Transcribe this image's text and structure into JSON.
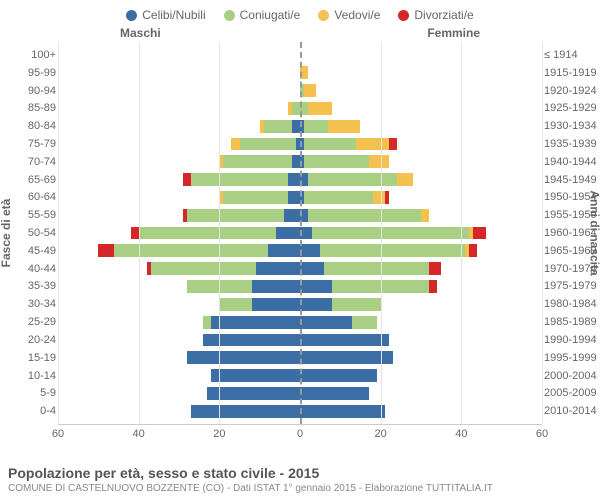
{
  "legend": {
    "items": [
      {
        "label": "Celibi/Nubili",
        "color": "#3b6ea5"
      },
      {
        "label": "Coniugati/e",
        "color": "#a9cf85"
      },
      {
        "label": "Vedovi/e",
        "color": "#f4c04f"
      },
      {
        "label": "Divorziati/e",
        "color": "#d62728"
      }
    ]
  },
  "column_headers": {
    "male": "Maschi",
    "female": "Femmine"
  },
  "axis_titles": {
    "left": "Fasce di età",
    "right": "Anni di nascita"
  },
  "xaxis": {
    "max": 60,
    "ticks": [
      60,
      40,
      20,
      0,
      20,
      40,
      60
    ]
  },
  "footer": {
    "title": "Popolazione per età, sesso e stato civile - 2015",
    "subtitle": "COMUNE DI CASTELNUOVO BOZZENTE (CO) - Dati ISTAT 1° gennaio 2015 - Elaborazione TUTTITALIA.IT"
  },
  "colors": {
    "celibi": "#3b6ea5",
    "coniugati": "#a9cf85",
    "vedovi": "#f4c04f",
    "divorziati": "#d62728",
    "grid": "#e5e5e5",
    "center": "#999999",
    "text": "#666666",
    "bg": "#ffffff"
  },
  "rows": [
    {
      "age": "100+",
      "birth": "≤ 1914",
      "m": {
        "ce": 0,
        "co": 0,
        "ve": 0,
        "di": 0
      },
      "f": {
        "ce": 0,
        "co": 0,
        "ve": 0,
        "di": 0
      }
    },
    {
      "age": "95-99",
      "birth": "1915-1919",
      "m": {
        "ce": 0,
        "co": 0,
        "ve": 0,
        "di": 0
      },
      "f": {
        "ce": 0,
        "co": 0,
        "ve": 2,
        "di": 0
      }
    },
    {
      "age": "90-94",
      "birth": "1920-1924",
      "m": {
        "ce": 0,
        "co": 0,
        "ve": 0,
        "di": 0
      },
      "f": {
        "ce": 0,
        "co": 1,
        "ve": 3,
        "di": 0
      }
    },
    {
      "age": "85-89",
      "birth": "1925-1929",
      "m": {
        "ce": 0,
        "co": 2,
        "ve": 1,
        "di": 0
      },
      "f": {
        "ce": 0,
        "co": 2,
        "ve": 6,
        "di": 0
      }
    },
    {
      "age": "80-84",
      "birth": "1930-1934",
      "m": {
        "ce": 2,
        "co": 7,
        "ve": 1,
        "di": 0
      },
      "f": {
        "ce": 1,
        "co": 6,
        "ve": 8,
        "di": 0
      }
    },
    {
      "age": "75-79",
      "birth": "1935-1939",
      "m": {
        "ce": 1,
        "co": 14,
        "ve": 2,
        "di": 0
      },
      "f": {
        "ce": 1,
        "co": 13,
        "ve": 8,
        "di": 2
      }
    },
    {
      "age": "70-74",
      "birth": "1940-1944",
      "m": {
        "ce": 2,
        "co": 17,
        "ve": 1,
        "di": 0
      },
      "f": {
        "ce": 1,
        "co": 16,
        "ve": 5,
        "di": 0
      }
    },
    {
      "age": "65-69",
      "birth": "1945-1949",
      "m": {
        "ce": 3,
        "co": 24,
        "ve": 0,
        "di": 2
      },
      "f": {
        "ce": 2,
        "co": 22,
        "ve": 4,
        "di": 0
      }
    },
    {
      "age": "60-64",
      "birth": "1950-1954",
      "m": {
        "ce": 3,
        "co": 16,
        "ve": 1,
        "di": 0
      },
      "f": {
        "ce": 1,
        "co": 17,
        "ve": 3,
        "di": 1
      }
    },
    {
      "age": "55-59",
      "birth": "1955-1959",
      "m": {
        "ce": 4,
        "co": 24,
        "ve": 0,
        "di": 1
      },
      "f": {
        "ce": 2,
        "co": 28,
        "ve": 2,
        "di": 0
      }
    },
    {
      "age": "50-54",
      "birth": "1960-1964",
      "m": {
        "ce": 6,
        "co": 34,
        "ve": 0,
        "di": 2
      },
      "f": {
        "ce": 3,
        "co": 39,
        "ve": 1,
        "di": 3
      }
    },
    {
      "age": "45-49",
      "birth": "1965-1969",
      "m": {
        "ce": 8,
        "co": 38,
        "ve": 0,
        "di": 4
      },
      "f": {
        "ce": 5,
        "co": 36,
        "ve": 1,
        "di": 2
      }
    },
    {
      "age": "40-44",
      "birth": "1970-1974",
      "m": {
        "ce": 11,
        "co": 26,
        "ve": 0,
        "di": 1
      },
      "f": {
        "ce": 6,
        "co": 26,
        "ve": 0,
        "di": 3
      }
    },
    {
      "age": "35-39",
      "birth": "1975-1979",
      "m": {
        "ce": 12,
        "co": 16,
        "ve": 0,
        "di": 0
      },
      "f": {
        "ce": 8,
        "co": 24,
        "ve": 0,
        "di": 2
      }
    },
    {
      "age": "30-34",
      "birth": "1980-1984",
      "m": {
        "ce": 12,
        "co": 8,
        "ve": 0,
        "di": 0
      },
      "f": {
        "ce": 8,
        "co": 12,
        "ve": 0,
        "di": 0
      }
    },
    {
      "age": "25-29",
      "birth": "1985-1989",
      "m": {
        "ce": 22,
        "co": 2,
        "ve": 0,
        "di": 0
      },
      "f": {
        "ce": 13,
        "co": 6,
        "ve": 0,
        "di": 0
      }
    },
    {
      "age": "20-24",
      "birth": "1990-1994",
      "m": {
        "ce": 24,
        "co": 0,
        "ve": 0,
        "di": 0
      },
      "f": {
        "ce": 22,
        "co": 0,
        "ve": 0,
        "di": 0
      }
    },
    {
      "age": "15-19",
      "birth": "1995-1999",
      "m": {
        "ce": 28,
        "co": 0,
        "ve": 0,
        "di": 0
      },
      "f": {
        "ce": 23,
        "co": 0,
        "ve": 0,
        "di": 0
      }
    },
    {
      "age": "10-14",
      "birth": "2000-2004",
      "m": {
        "ce": 22,
        "co": 0,
        "ve": 0,
        "di": 0
      },
      "f": {
        "ce": 19,
        "co": 0,
        "ve": 0,
        "di": 0
      }
    },
    {
      "age": "5-9",
      "birth": "2005-2009",
      "m": {
        "ce": 23,
        "co": 0,
        "ve": 0,
        "di": 0
      },
      "f": {
        "ce": 17,
        "co": 0,
        "ve": 0,
        "di": 0
      }
    },
    {
      "age": "0-4",
      "birth": "2010-2014",
      "m": {
        "ce": 27,
        "co": 0,
        "ve": 0,
        "di": 0
      },
      "f": {
        "ce": 21,
        "co": 0,
        "ve": 0,
        "di": 0
      }
    }
  ]
}
